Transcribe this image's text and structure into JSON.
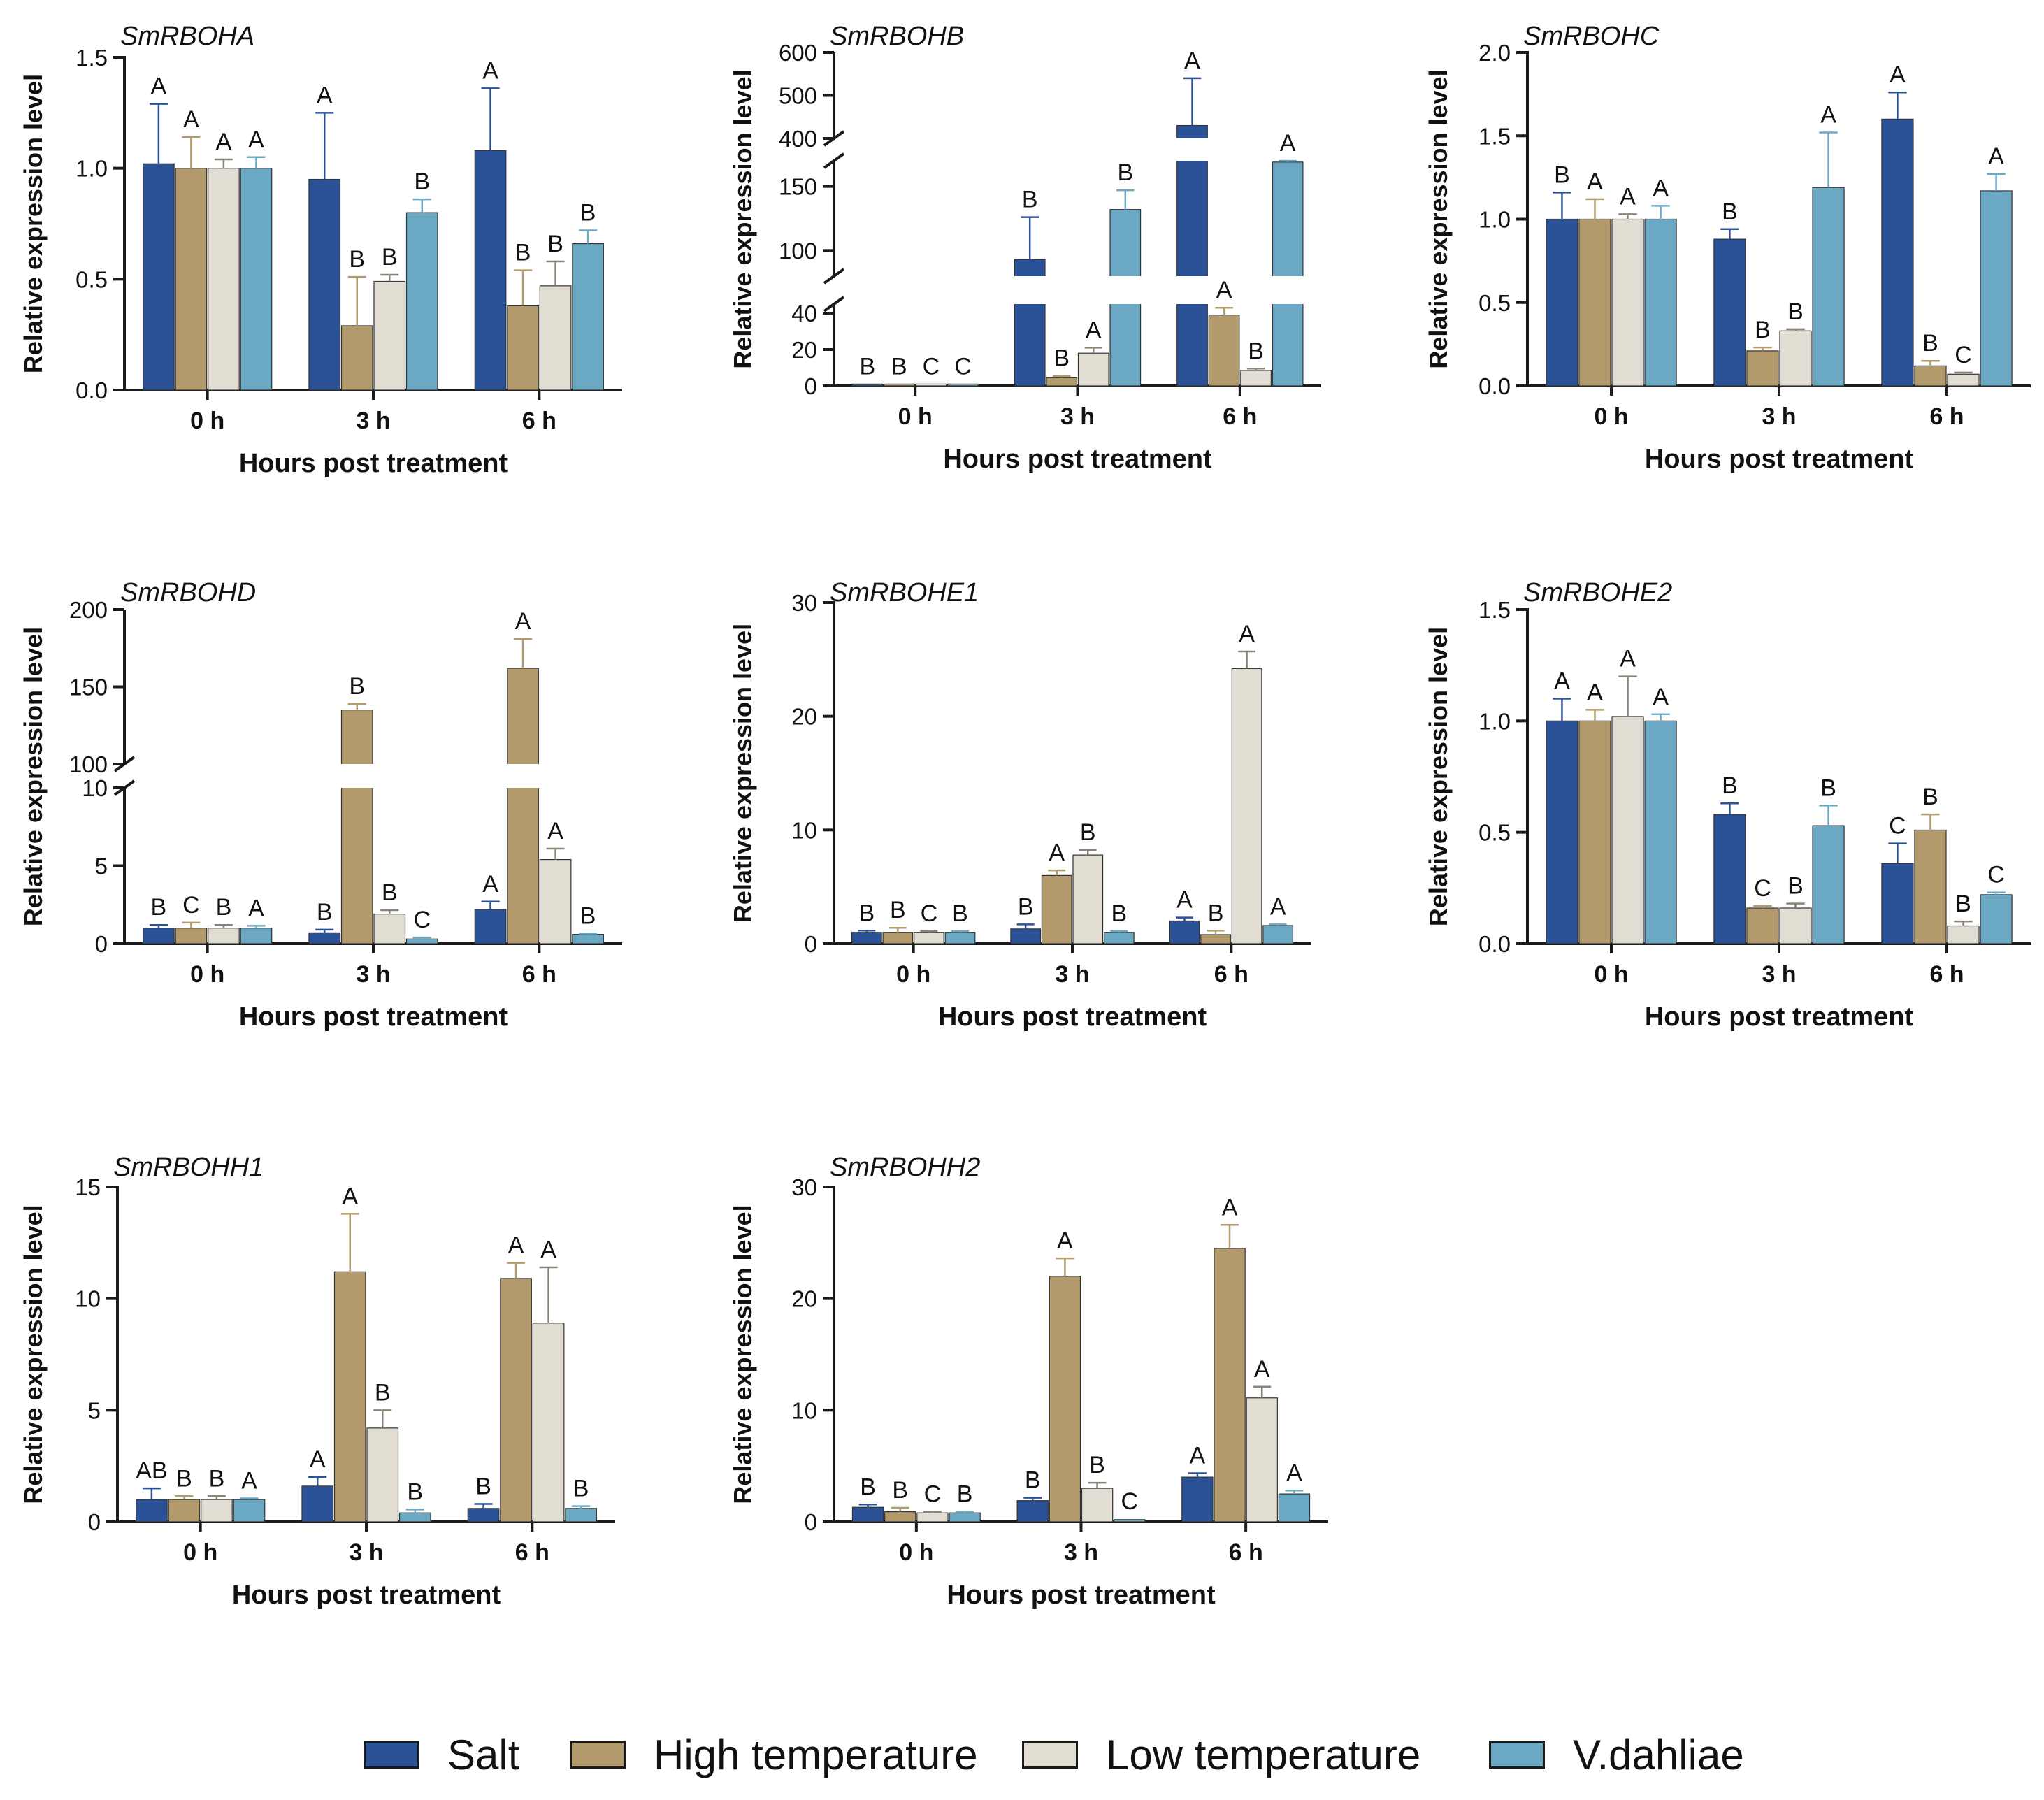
{
  "figure": {
    "y_axis_label": "Relative expression level",
    "x_axis_label": "Hours post treatment",
    "timepoints": [
      "0 h",
      "3 h",
      "6 h"
    ]
  },
  "legend": [
    {
      "label": "Salt",
      "color": "#2b5196"
    },
    {
      "label": "High temperature",
      "color": "#b39a6d"
    },
    {
      "label": "Low temperature",
      "color": "#e1ddd3"
    },
    {
      "label": "V.dahliae",
      "color": "#6ba8c4"
    }
  ],
  "chart_data": [
    {
      "type": "bar",
      "title": "SmRBOHA",
      "xlabel": "Hours post treatment",
      "ylabel": "Relative expression level",
      "categories": [
        "0 h",
        "3 h",
        "6 h"
      ],
      "ylim": [
        0,
        1.5
      ],
      "yticks": [
        0.0,
        0.5,
        1.0,
        1.5
      ],
      "ytick_labels": [
        "0.0",
        "0.5",
        "1.0",
        "1.5"
      ],
      "series": [
        {
          "name": "Salt",
          "values": [
            1.02,
            0.95,
            1.08
          ],
          "errors": [
            0.27,
            0.3,
            0.28
          ],
          "letters": [
            "A",
            "A",
            "A"
          ]
        },
        {
          "name": "High temperature",
          "values": [
            1.0,
            0.29,
            0.38
          ],
          "errors": [
            0.14,
            0.22,
            0.16
          ],
          "letters": [
            "A",
            "B",
            "B"
          ]
        },
        {
          "name": "Low temperature",
          "values": [
            1.0,
            0.49,
            0.47
          ],
          "errors": [
            0.04,
            0.03,
            0.11
          ],
          "letters": [
            "A",
            "B",
            "B"
          ]
        },
        {
          "name": "V.dahliae",
          "values": [
            1.0,
            0.8,
            0.66
          ],
          "errors": [
            0.05,
            0.06,
            0.06
          ],
          "letters": [
            "A",
            "B",
            "B"
          ]
        }
      ]
    },
    {
      "type": "bar",
      "title": "SmRBOHB",
      "xlabel": "Hours post treatment",
      "ylabel": "Relative expression level",
      "categories": [
        "0 h",
        "3 h",
        "6 h"
      ],
      "broken_axis": [
        {
          "range": [
            0,
            45
          ],
          "ticks": [
            0,
            20,
            40
          ],
          "tick_labels": [
            "0",
            "20",
            "40"
          ]
        },
        {
          "range": [
            80,
            170
          ],
          "ticks": [
            100,
            150
          ],
          "tick_labels": [
            "100",
            "150"
          ]
        },
        {
          "range": [
            400,
            600
          ],
          "ticks": [
            400,
            500,
            600
          ],
          "tick_labels": [
            "400",
            "500",
            "600"
          ]
        }
      ],
      "series": [
        {
          "name": "Salt",
          "values": [
            1.0,
            93,
            430
          ],
          "errors": [
            0,
            33,
            110
          ],
          "letters": [
            "B",
            "B",
            "A"
          ]
        },
        {
          "name": "High temperature",
          "values": [
            1.0,
            4.5,
            39
          ],
          "errors": [
            0,
            1.0,
            4
          ],
          "letters": [
            "B",
            "B",
            "A"
          ]
        },
        {
          "name": "Low temperature",
          "values": [
            1.0,
            18,
            8.5
          ],
          "errors": [
            0,
            3,
            1
          ],
          "letters": [
            "C",
            "A",
            "B"
          ]
        },
        {
          "name": "V.dahliae",
          "values": [
            1.0,
            132,
            169
          ],
          "errors": [
            0,
            15,
            8
          ],
          "letters": [
            "C",
            "B",
            "A"
          ]
        }
      ]
    },
    {
      "type": "bar",
      "title": "SmRBOHC",
      "xlabel": "Hours post treatment",
      "ylabel": "Relative expression level",
      "categories": [
        "0 h",
        "3 h",
        "6 h"
      ],
      "ylim": [
        0,
        2.0
      ],
      "yticks": [
        0.0,
        0.5,
        1.0,
        1.5,
        2.0
      ],
      "ytick_labels": [
        "0.0",
        "0.5",
        "1.0",
        "1.5",
        "2.0"
      ],
      "series": [
        {
          "name": "Salt",
          "values": [
            1.0,
            0.88,
            1.6
          ],
          "errors": [
            0.16,
            0.06,
            0.16
          ],
          "letters": [
            "B",
            "B",
            "A"
          ]
        },
        {
          "name": "High temperature",
          "values": [
            1.0,
            0.21,
            0.12
          ],
          "errors": [
            0.12,
            0.02,
            0.03
          ],
          "letters": [
            "A",
            "B",
            "B"
          ]
        },
        {
          "name": "Low temperature",
          "values": [
            1.0,
            0.33,
            0.07
          ],
          "errors": [
            0.03,
            0.01,
            0.01
          ],
          "letters": [
            "A",
            "B",
            "C"
          ]
        },
        {
          "name": "V.dahliae",
          "values": [
            1.0,
            1.19,
            1.17
          ],
          "errors": [
            0.08,
            0.33,
            0.1
          ],
          "letters": [
            "A",
            "A",
            "A"
          ]
        }
      ]
    },
    {
      "type": "bar",
      "title": "SmRBOHD",
      "xlabel": "Hours post treatment",
      "ylabel": "Relative expression level",
      "categories": [
        "0 h",
        "3 h",
        "6 h"
      ],
      "broken_axis": [
        {
          "range": [
            0,
            10
          ],
          "ticks": [
            0,
            5,
            10
          ],
          "tick_labels": [
            "0",
            "5",
            "10"
          ]
        },
        {
          "range": [
            100,
            200
          ],
          "ticks": [
            100,
            150,
            200
          ],
          "tick_labels": [
            "100",
            "150",
            "200"
          ]
        }
      ],
      "series": [
        {
          "name": "Salt",
          "values": [
            1.0,
            0.7,
            2.2
          ],
          "errors": [
            0.2,
            0.2,
            0.5
          ],
          "letters": [
            "B",
            "B",
            "A"
          ]
        },
        {
          "name": "High temperature",
          "values": [
            1.0,
            135,
            162
          ],
          "errors": [
            0.35,
            4,
            19
          ],
          "letters": [
            "C",
            "B",
            "A"
          ]
        },
        {
          "name": "Low temperature",
          "values": [
            1.0,
            1.9,
            5.4
          ],
          "errors": [
            0.2,
            0.25,
            0.7
          ],
          "letters": [
            "B",
            "B",
            "A"
          ]
        },
        {
          "name": "V.dahliae",
          "values": [
            1.0,
            0.3,
            0.6
          ],
          "errors": [
            0.15,
            0.1,
            0.05
          ],
          "letters": [
            "A",
            "C",
            "B"
          ]
        }
      ]
    },
    {
      "type": "bar",
      "title": "SmRBOHE1",
      "xlabel": "Hours post treatment",
      "ylabel": "Relative expression level",
      "categories": [
        "0 h",
        "3 h",
        "6 h"
      ],
      "ylim": [
        0,
        30
      ],
      "yticks": [
        0,
        10,
        20,
        30
      ],
      "ytick_labels": [
        "0",
        "10",
        "20",
        "30"
      ],
      "series": [
        {
          "name": "Salt",
          "values": [
            1.0,
            1.3,
            2.0
          ],
          "errors": [
            0.15,
            0.4,
            0.3
          ],
          "letters": [
            "B",
            "B",
            "A"
          ]
        },
        {
          "name": "High temperature",
          "values": [
            1.0,
            6.0,
            0.8
          ],
          "errors": [
            0.4,
            0.45,
            0.35
          ],
          "letters": [
            "B",
            "A",
            "B"
          ]
        },
        {
          "name": "Low temperature",
          "values": [
            1.0,
            7.8,
            24.2
          ],
          "errors": [
            0.1,
            0.45,
            1.5
          ],
          "letters": [
            "C",
            "B",
            "A"
          ]
        },
        {
          "name": "V.dahliae",
          "values": [
            1.0,
            1.0,
            1.6
          ],
          "errors": [
            0.1,
            0.1,
            0.1
          ],
          "letters": [
            "B",
            "B",
            "A"
          ]
        }
      ]
    },
    {
      "type": "bar",
      "title": "SmRBOHE2",
      "xlabel": "Hours post treatment",
      "ylabel": "Relative expression level",
      "categories": [
        "0 h",
        "3 h",
        "6 h"
      ],
      "ylim": [
        0,
        1.5
      ],
      "yticks": [
        0.0,
        0.5,
        1.0,
        1.5
      ],
      "ytick_labels": [
        "0.0",
        "0.5",
        "1.0",
        "1.5"
      ],
      "series": [
        {
          "name": "Salt",
          "values": [
            1.0,
            0.58,
            0.36
          ],
          "errors": [
            0.1,
            0.05,
            0.09
          ],
          "letters": [
            "A",
            "B",
            "C"
          ]
        },
        {
          "name": "High temperature",
          "values": [
            1.0,
            0.16,
            0.51
          ],
          "errors": [
            0.05,
            0.01,
            0.07
          ],
          "letters": [
            "A",
            "C",
            "B"
          ]
        },
        {
          "name": "Low temperature",
          "values": [
            1.02,
            0.16,
            0.08
          ],
          "errors": [
            0.18,
            0.02,
            0.02
          ],
          "letters": [
            "A",
            "B",
            "B"
          ]
        },
        {
          "name": "V.dahliae",
          "values": [
            1.0,
            0.53,
            0.22
          ],
          "errors": [
            0.03,
            0.09,
            0.01
          ],
          "letters": [
            "A",
            "B",
            "C"
          ]
        }
      ]
    },
    {
      "type": "bar",
      "title": "SmRBOHH1",
      "xlabel": "Hours post treatment",
      "ylabel": "Relative expression level",
      "categories": [
        "0 h",
        "3 h",
        "6 h"
      ],
      "ylim": [
        0,
        15
      ],
      "yticks": [
        0,
        5,
        10,
        15
      ],
      "ytick_labels": [
        "0",
        "5",
        "10",
        "15"
      ],
      "series": [
        {
          "name": "Salt",
          "values": [
            1.0,
            1.6,
            0.6
          ],
          "errors": [
            0.5,
            0.4,
            0.2
          ],
          "letters": [
            "AB",
            "A",
            "B"
          ]
        },
        {
          "name": "High temperature",
          "values": [
            1.0,
            11.2,
            10.9
          ],
          "errors": [
            0.15,
            2.6,
            0.7
          ],
          "letters": [
            "B",
            "A",
            "A"
          ]
        },
        {
          "name": "Low temperature",
          "values": [
            1.0,
            4.2,
            8.9
          ],
          "errors": [
            0.15,
            0.8,
            2.5
          ],
          "letters": [
            "B",
            "B",
            "A"
          ]
        },
        {
          "name": "V.dahliae",
          "values": [
            1.0,
            0.4,
            0.6
          ],
          "errors": [
            0.05,
            0.15,
            0.1
          ],
          "letters": [
            "A",
            "B",
            "B"
          ]
        }
      ]
    },
    {
      "type": "bar",
      "title": "SmRBOHH2",
      "xlabel": "Hours post treatment",
      "ylabel": "Relative expression level",
      "categories": [
        "0 h",
        "3 h",
        "6 h"
      ],
      "ylim": [
        0,
        30
      ],
      "yticks": [
        0,
        10,
        20,
        30
      ],
      "ytick_labels": [
        "0",
        "10",
        "20",
        "30"
      ],
      "series": [
        {
          "name": "Salt",
          "values": [
            1.3,
            1.9,
            4.0
          ],
          "errors": [
            0.25,
            0.25,
            0.35
          ],
          "letters": [
            "B",
            "B",
            "A"
          ]
        },
        {
          "name": "High temperature",
          "values": [
            0.9,
            22.0,
            24.5
          ],
          "errors": [
            0.35,
            1.6,
            2.1
          ],
          "letters": [
            "B",
            "A",
            "A"
          ]
        },
        {
          "name": "Low temperature",
          "values": [
            0.8,
            3.0,
            11.1
          ],
          "errors": [
            0.1,
            0.5,
            1.0
          ],
          "letters": [
            "C",
            "B",
            "A"
          ]
        },
        {
          "name": "V.dahliae",
          "values": [
            0.8,
            0.2,
            2.5
          ],
          "errors": [
            0.1,
            0.05,
            0.3
          ],
          "letters": [
            "B",
            "C",
            "A"
          ]
        }
      ]
    }
  ]
}
